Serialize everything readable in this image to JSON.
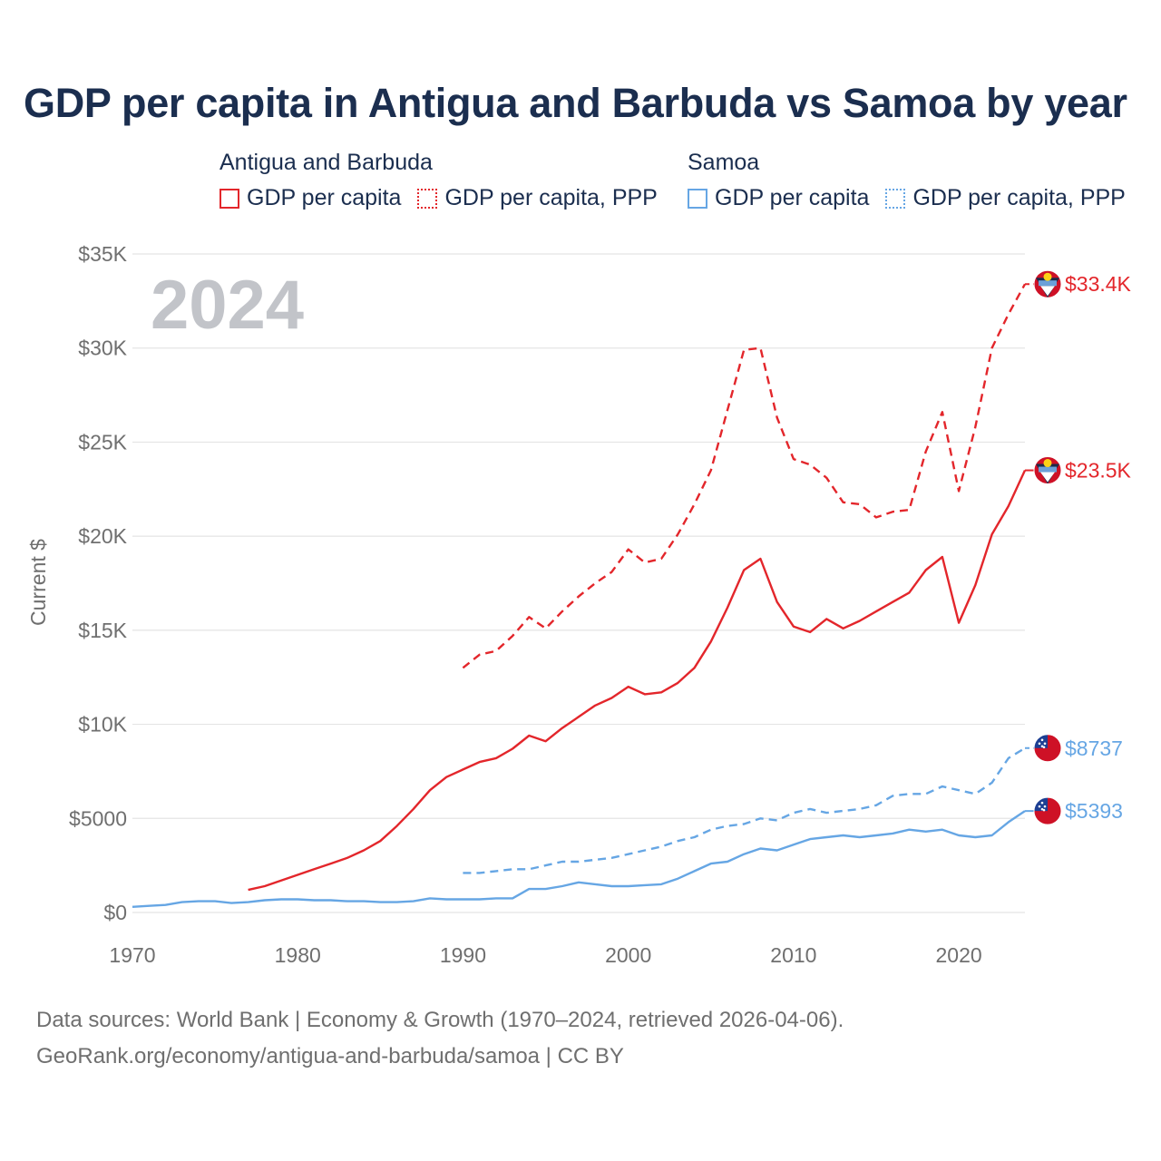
{
  "title": "GDP per capita in Antigua and Barbuda vs Samoa by year",
  "legend": {
    "groups": [
      {
        "country": "Antigua and Barbuda",
        "color": "#e3262b",
        "items": [
          {
            "label": "GDP per capita",
            "style": "solid"
          },
          {
            "label": "GDP per capita, PPP",
            "style": "dotted"
          }
        ]
      },
      {
        "country": "Samoa",
        "color": "#66a6e4",
        "items": [
          {
            "label": "GDP per capita",
            "style": "solid"
          },
          {
            "label": "GDP per capita, PPP",
            "style": "dotted"
          }
        ]
      }
    ]
  },
  "year_label": "2024",
  "footer": {
    "line1": "Data sources: World Bank | Economy & Growth (1970–2024, retrieved 2026-04-06).",
    "line2": "GeoRank.org/economy/antigua-and-barbuda/samoa | CC BY"
  },
  "colors": {
    "antigua": "#e3262b",
    "samoa": "#66a6e4",
    "grid": "#e4e4e4",
    "title": "#1b2e4f"
  },
  "chart_data": {
    "type": "line",
    "title": "GDP per capita in Antigua and Barbuda vs Samoa by year",
    "xlabel": "",
    "ylabel": "Current $",
    "xlim": [
      1970,
      2024
    ],
    "ylim": [
      0,
      35000
    ],
    "x_ticks": [
      1970,
      1980,
      1990,
      2000,
      2010,
      2020
    ],
    "y_ticks": [
      0,
      5000,
      10000,
      15000,
      20000,
      25000,
      30000,
      35000
    ],
    "y_tick_labels": [
      "$0",
      "$5000",
      "$10K",
      "$15K",
      "$20K",
      "$25K",
      "$30K",
      "$35K"
    ],
    "grid": true,
    "series": [
      {
        "name": "Antigua and Barbuda — GDP per capita, PPP",
        "country": "antigua",
        "dash": true,
        "end_label": "$33.4K",
        "x": [
          1990,
          1991,
          1992,
          1993,
          1994,
          1995,
          1996,
          1997,
          1998,
          1999,
          2000,
          2001,
          2002,
          2003,
          2004,
          2005,
          2006,
          2007,
          2008,
          2009,
          2010,
          2011,
          2012,
          2013,
          2014,
          2015,
          2016,
          2017,
          2018,
          2019,
          2020,
          2021,
          2022,
          2023,
          2024
        ],
        "y": [
          13000,
          13700,
          13900,
          14700,
          15700,
          15100,
          16000,
          16800,
          17500,
          18100,
          19300,
          18600,
          18800,
          20100,
          21700,
          23500,
          26700,
          29900,
          30000,
          26300,
          24100,
          23800,
          23100,
          21800,
          21700,
          21000,
          21300,
          21400,
          24500,
          26600,
          22400,
          25800,
          30000,
          31800,
          33400
        ]
      },
      {
        "name": "Antigua and Barbuda — GDP per capita",
        "country": "antigua",
        "dash": false,
        "end_label": "$23.5K",
        "x": [
          1977,
          1978,
          1979,
          1980,
          1981,
          1982,
          1983,
          1984,
          1985,
          1986,
          1987,
          1988,
          1989,
          1990,
          1991,
          1992,
          1993,
          1994,
          1995,
          1996,
          1997,
          1998,
          1999,
          2000,
          2001,
          2002,
          2003,
          2004,
          2005,
          2006,
          2007,
          2008,
          2009,
          2010,
          2011,
          2012,
          2013,
          2014,
          2015,
          2016,
          2017,
          2018,
          2019,
          2020,
          2021,
          2022,
          2023,
          2024
        ],
        "y": [
          1200,
          1400,
          1700,
          2000,
          2300,
          2600,
          2900,
          3300,
          3800,
          4600,
          5500,
          6500,
          7200,
          7600,
          8000,
          8200,
          8700,
          9400,
          9100,
          9800,
          10400,
          11000,
          11400,
          12000,
          11600,
          11700,
          12200,
          13000,
          14400,
          16200,
          18200,
          18800,
          16500,
          15200,
          14900,
          15600,
          15100,
          15500,
          16000,
          16500,
          17000,
          18200,
          18900,
          15400,
          17400,
          20100,
          21600,
          23500
        ]
      },
      {
        "name": "Samoa — GDP per capita, PPP",
        "country": "samoa",
        "dash": true,
        "end_label": "$8737",
        "x": [
          1990,
          1991,
          1992,
          1993,
          1994,
          1995,
          1996,
          1997,
          1998,
          1999,
          2000,
          2001,
          2002,
          2003,
          2004,
          2005,
          2006,
          2007,
          2008,
          2009,
          2010,
          2011,
          2012,
          2013,
          2014,
          2015,
          2016,
          2017,
          2018,
          2019,
          2020,
          2021,
          2022,
          2023,
          2024
        ],
        "y": [
          2100,
          2100,
          2200,
          2300,
          2300,
          2500,
          2700,
          2700,
          2800,
          2900,
          3100,
          3300,
          3500,
          3800,
          4000,
          4400,
          4600,
          4700,
          5000,
          4900,
          5300,
          5500,
          5300,
          5400,
          5500,
          5700,
          6200,
          6300,
          6300,
          6700,
          6500,
          6300,
          6900,
          8200,
          8737
        ]
      },
      {
        "name": "Samoa — GDP per capita",
        "country": "samoa",
        "dash": false,
        "end_label": "$5393",
        "x": [
          1970,
          1971,
          1972,
          1973,
          1974,
          1975,
          1976,
          1977,
          1978,
          1979,
          1980,
          1981,
          1982,
          1983,
          1984,
          1985,
          1986,
          1987,
          1988,
          1989,
          1990,
          1991,
          1992,
          1993,
          1994,
          1995,
          1996,
          1997,
          1998,
          1999,
          2000,
          2001,
          2002,
          2003,
          2004,
          2005,
          2006,
          2007,
          2008,
          2009,
          2010,
          2011,
          2012,
          2013,
          2014,
          2015,
          2016,
          2017,
          2018,
          2019,
          2020,
          2021,
          2022,
          2023,
          2024
        ],
        "y": [
          300,
          350,
          400,
          550,
          600,
          600,
          500,
          550,
          650,
          700,
          700,
          650,
          650,
          600,
          600,
          550,
          550,
          600,
          750,
          700,
          700,
          700,
          750,
          750,
          1250,
          1250,
          1400,
          1600,
          1500,
          1400,
          1400,
          1450,
          1500,
          1800,
          2200,
          2600,
          2700,
          3100,
          3400,
          3300,
          3600,
          3900,
          4000,
          4100,
          4000,
          4100,
          4200,
          4400,
          4300,
          4400,
          4100,
          4000,
          4100,
          4800,
          5393
        ]
      }
    ]
  }
}
